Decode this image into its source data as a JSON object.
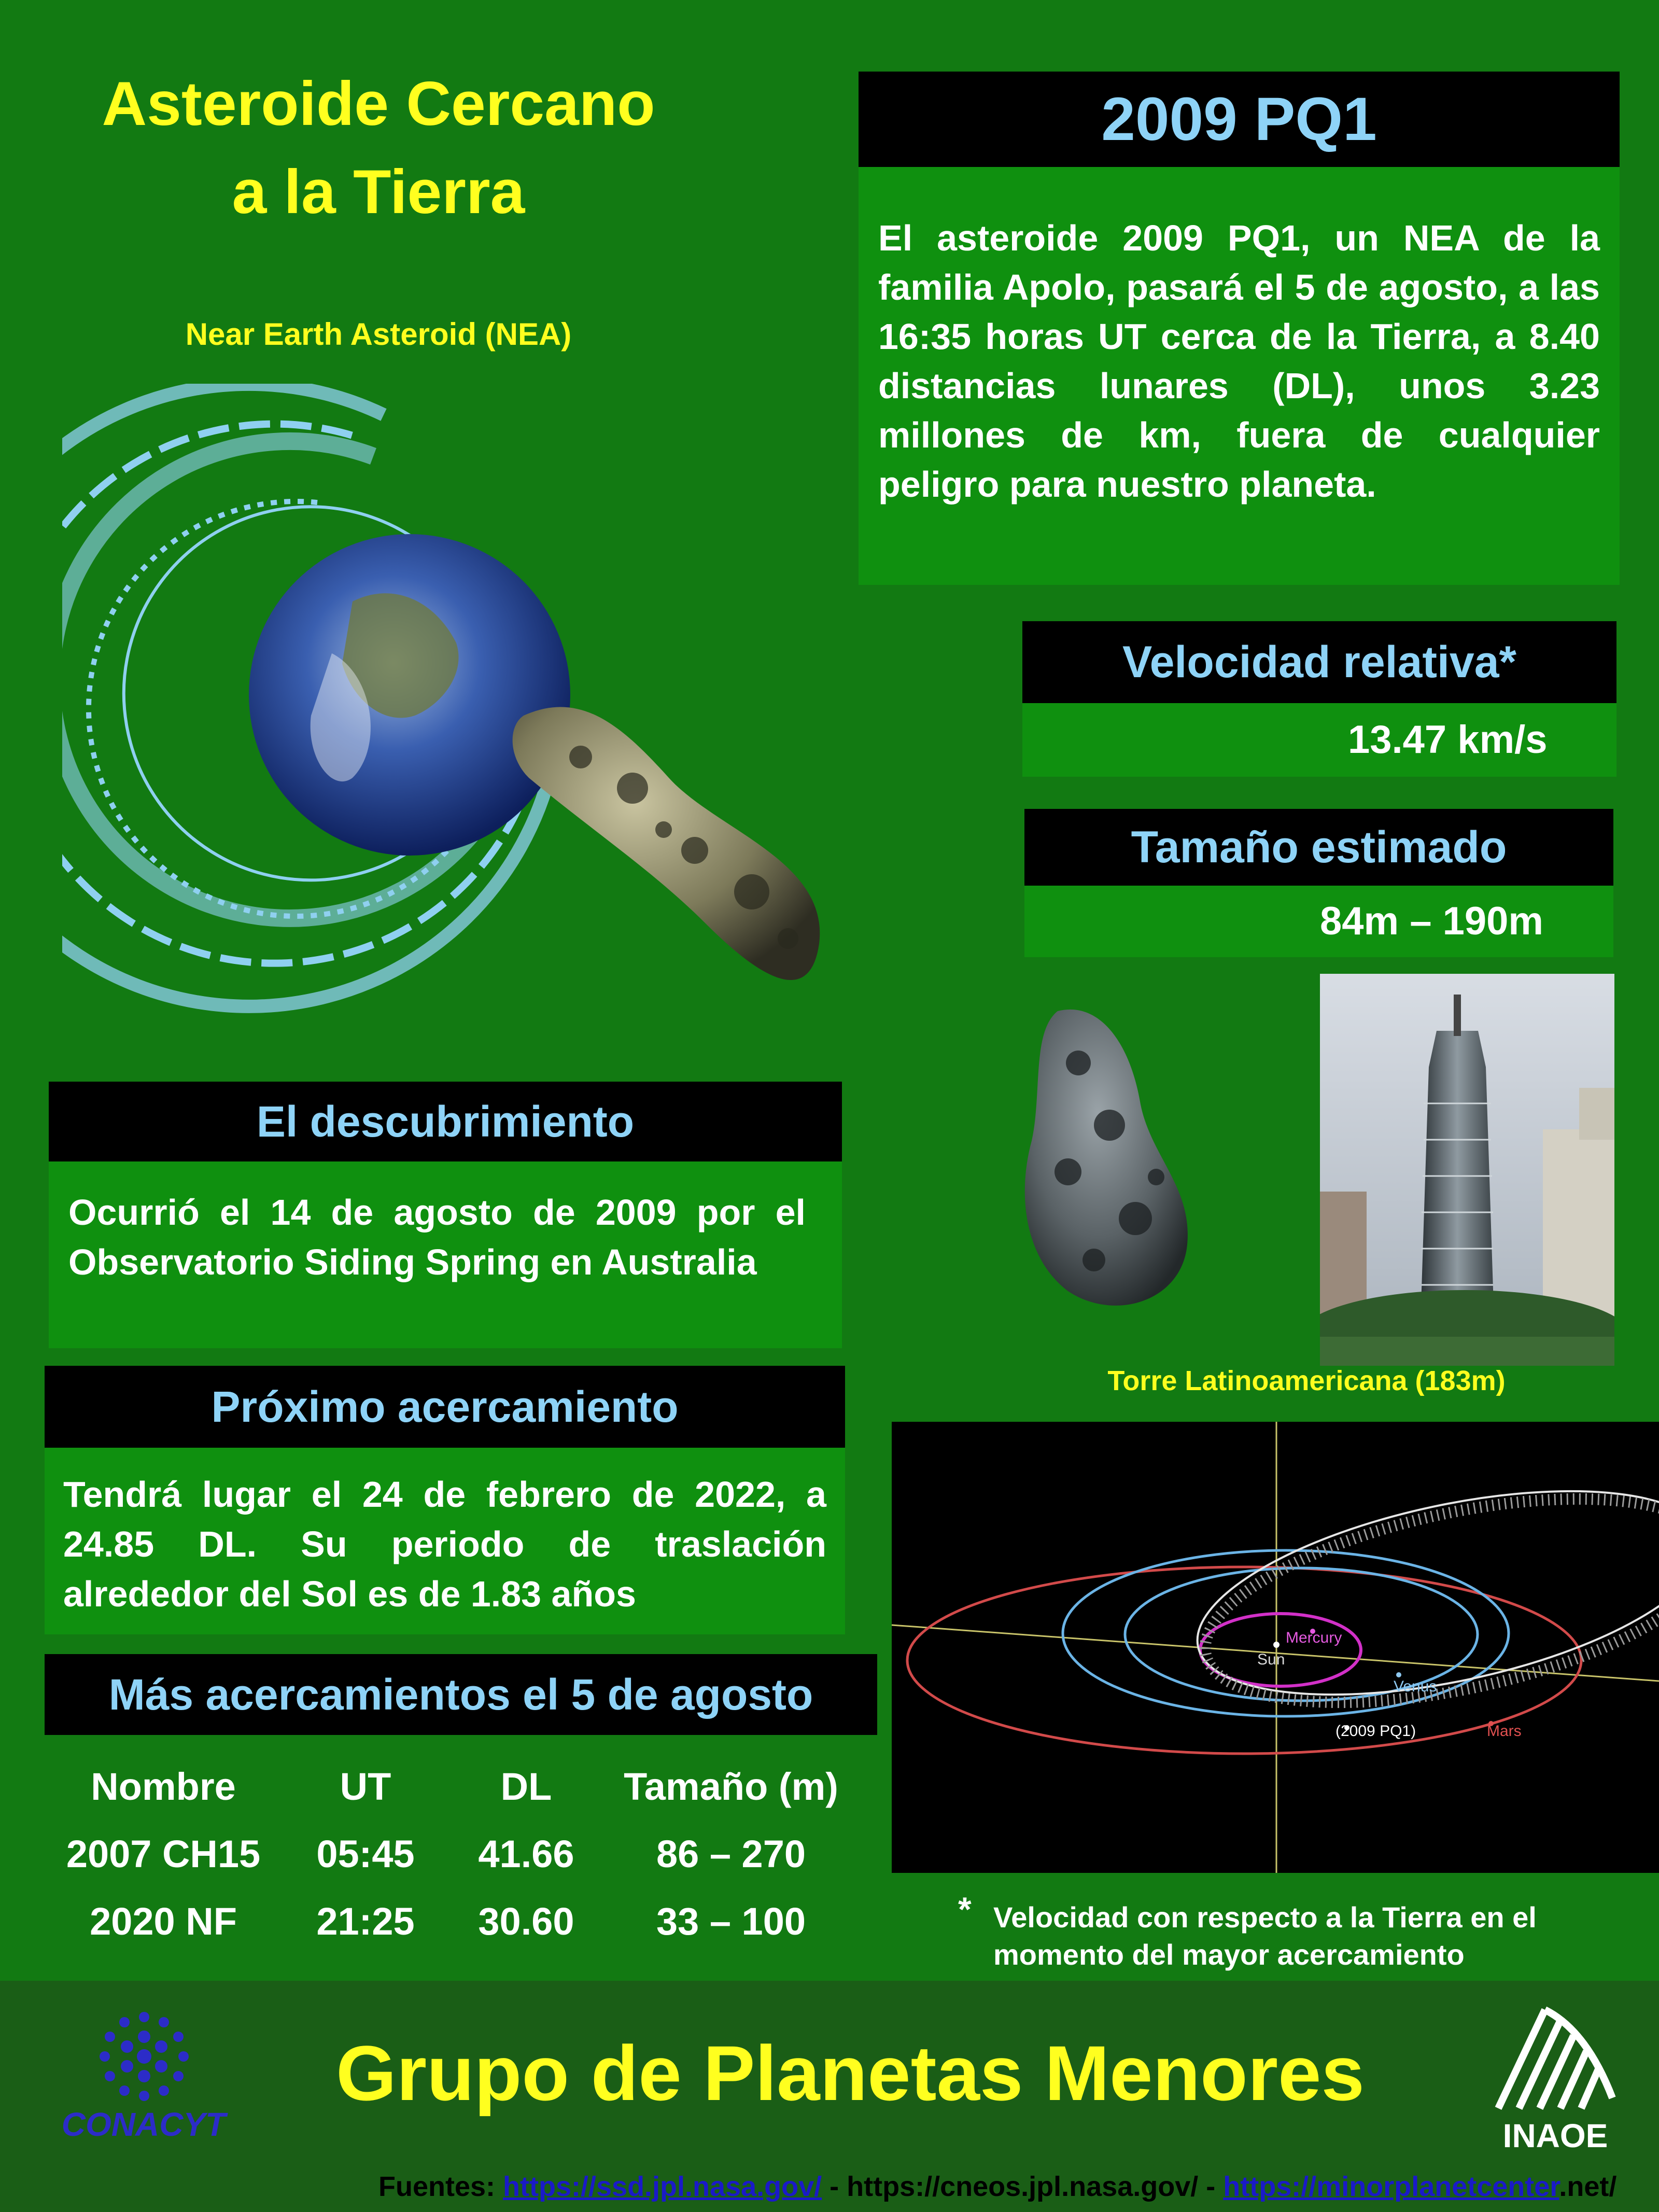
{
  "title": "Asteroide Cercano a la Tierra",
  "subtitle": "Near Earth Asteroid (NEA)",
  "asteroid": {
    "name": "2009 PQ1",
    "description": "El asteroide 2009 PQ1, un NEA de la familia Apolo, pasará el 5 de agosto, a las 16:35 horas UT cerca de la Tierra, a 8.40 distancias lunares (DL), unos 3.23 millones de km, fuera de cualquier peligro para nuestro planeta."
  },
  "velocity": {
    "label": "Velocidad relativa*",
    "value": "13.47 km/s"
  },
  "size": {
    "label": "Tamaño estimado",
    "value": "84m – 190m"
  },
  "discovery": {
    "label": "El descubrimiento",
    "text": "Ocurrió el 14 de agosto de 2009 por el Observatorio Siding Spring en Australia"
  },
  "next_approach": {
    "label": "Próximo acercamiento",
    "text": "Tendrá lugar el  24 de febrero de 2022, a 24.85 DL. Su periodo de traslación alrededor del Sol es de 1.83 años"
  },
  "more": {
    "label": "Más acercamientos el 5 de agosto",
    "columns": [
      "Nombre",
      "UT",
      "DL",
      "Tamaño (m)"
    ],
    "rows": [
      [
        "2007 CH15",
        "05:45",
        "41.66",
        "86 – 270"
      ],
      [
        "2020 NF",
        "21:25",
        "30.60",
        "33 – 100"
      ]
    ]
  },
  "tower_caption": "Torre Latinoamericana (183m)",
  "orbit_labels": {
    "sun": "Sun",
    "mercury": "Mercury",
    "venus": "Venus",
    "asteroid": "(2009 PQ1)",
    "mars": "Mars"
  },
  "footnote": {
    "mark": "*",
    "text": "Velocidad con respecto a la Tierra en el momento del mayor acercamiento"
  },
  "footer": {
    "group": "Grupo de Planetas Menores",
    "conacyt": "CONACYT",
    "inaoe": "INAOE",
    "sources_label": "Fuentes:",
    "link1": "https://ssd.jpl.nasa.gov/",
    "sep1": " - ",
    "link2": "https://cneos.jpl.nasa.gov/",
    "sep2": " -  ",
    "link3": "https://minorplanetcenter",
    "link3_tail": ".net/"
  },
  "colors": {
    "background": "#127a12",
    "title": "#ffff1f",
    "heading": "#8ed3f7",
    "panel": "#0f900f"
  }
}
